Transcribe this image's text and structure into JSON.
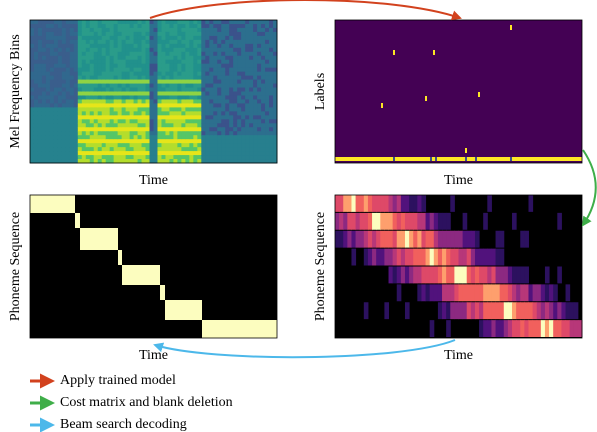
{
  "panels": [
    {
      "ylabel": "Mel Frequency Bins",
      "xlabel": "Time"
    },
    {
      "ylabel": "Labels",
      "xlabel": "Time"
    },
    {
      "ylabel": "Phoneme Sequence",
      "xlabel": "Time"
    },
    {
      "ylabel": "Phoneme Sequence",
      "xlabel": "Time"
    }
  ],
  "legend": [
    {
      "label": "Apply trained model",
      "color": "#d2421e"
    },
    {
      "label": "Cost matrix and blank deletion",
      "color": "#3fae49"
    },
    {
      "label": "Beam search decoding",
      "color": "#4cb8ea"
    }
  ]
}
